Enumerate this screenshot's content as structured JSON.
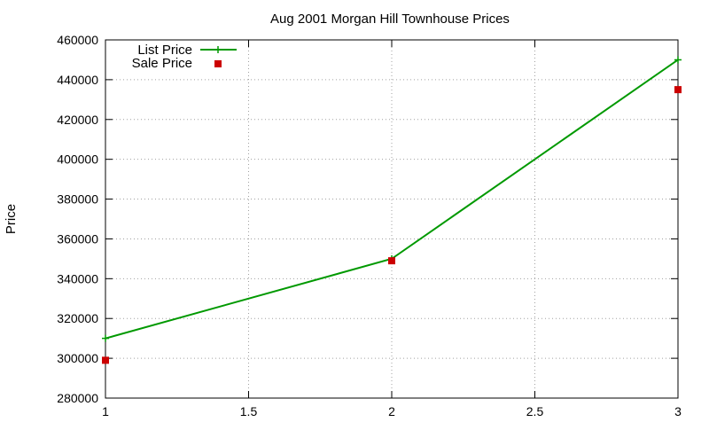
{
  "chart_data": {
    "type": "line",
    "title": "Aug 2001 Morgan Hill Townhouse Prices",
    "xlabel": "",
    "ylabel": "Price",
    "xlim": [
      1,
      3
    ],
    "ylim": [
      280000,
      460000
    ],
    "x_ticks": [
      1,
      1.5,
      2,
      2.5,
      3
    ],
    "x_tick_labels": [
      "1",
      "1.5",
      "2",
      "2.5",
      "3"
    ],
    "y_ticks": [
      280000,
      300000,
      320000,
      340000,
      360000,
      380000,
      400000,
      420000,
      440000,
      460000
    ],
    "y_tick_labels": [
      "280000",
      "300000",
      "320000",
      "340000",
      "360000",
      "380000",
      "400000",
      "420000",
      "440000",
      "460000"
    ],
    "grid": true,
    "legend_position": "top-left",
    "series": [
      {
        "name": "List Price",
        "style": "line-with-plus-markers",
        "color": "#009900",
        "x": [
          1,
          2,
          3
        ],
        "values": [
          310000,
          350000,
          450000
        ]
      },
      {
        "name": "Sale Price",
        "style": "square-markers",
        "color": "#cc0000",
        "x": [
          1,
          2,
          3
        ],
        "values": [
          299000,
          349000,
          435000
        ]
      }
    ]
  }
}
